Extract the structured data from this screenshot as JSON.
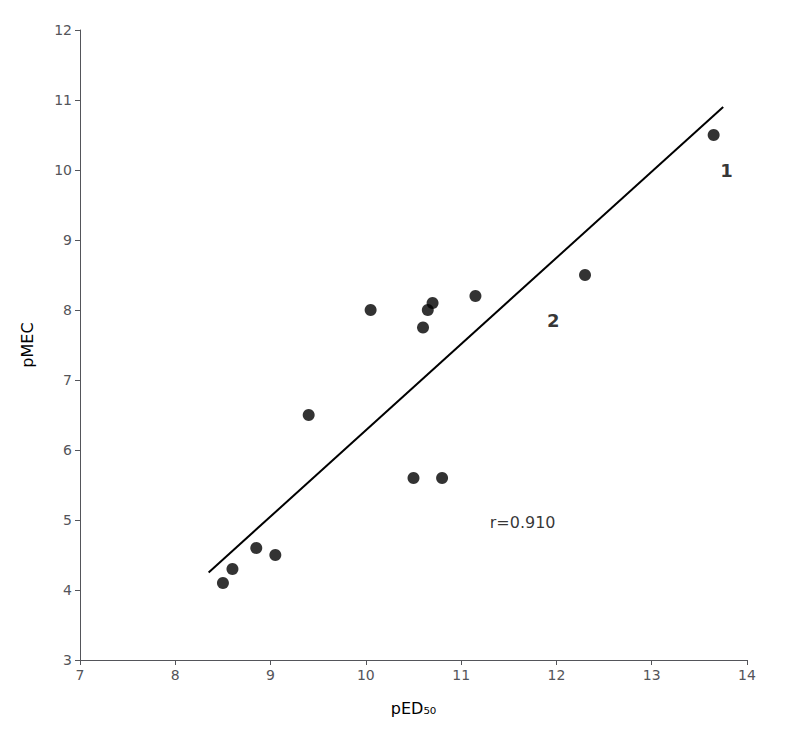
{
  "chart_data": {
    "type": "scatter",
    "x": [
      8.5,
      8.6,
      8.85,
      9.05,
      9.4,
      10.05,
      10.5,
      10.8,
      10.6,
      10.65,
      10.7,
      11.15,
      12.3,
      13.65
    ],
    "y": [
      4.1,
      4.3,
      4.6,
      4.5,
      6.5,
      8.0,
      5.6,
      5.6,
      7.75,
      8.0,
      8.1,
      8.2,
      8.5,
      10.5
    ],
    "color": "#000000",
    "fit_line": {
      "x": [
        8.35,
        13.75
      ],
      "y": [
        4.25,
        10.9
      ],
      "color": "#000000"
    },
    "annotations": [
      {
        "text": "r=0.910",
        "x": 11.3,
        "y": 4.85
      },
      {
        "text": "1",
        "x": 13.72,
        "y": 10.0
      },
      {
        "text": "2",
        "x": 11.9,
        "y": 7.85
      }
    ],
    "xlabel": "pED₅₀",
    "ylabel": "pMEC",
    "xlim": [
      7,
      14
    ],
    "ylim": [
      3,
      12
    ],
    "xticks": [
      7,
      8,
      9,
      10,
      11,
      12,
      13,
      14
    ],
    "yticks": [
      3,
      4,
      5,
      6,
      7,
      8,
      9,
      10,
      11,
      12
    ],
    "grid": false
  }
}
